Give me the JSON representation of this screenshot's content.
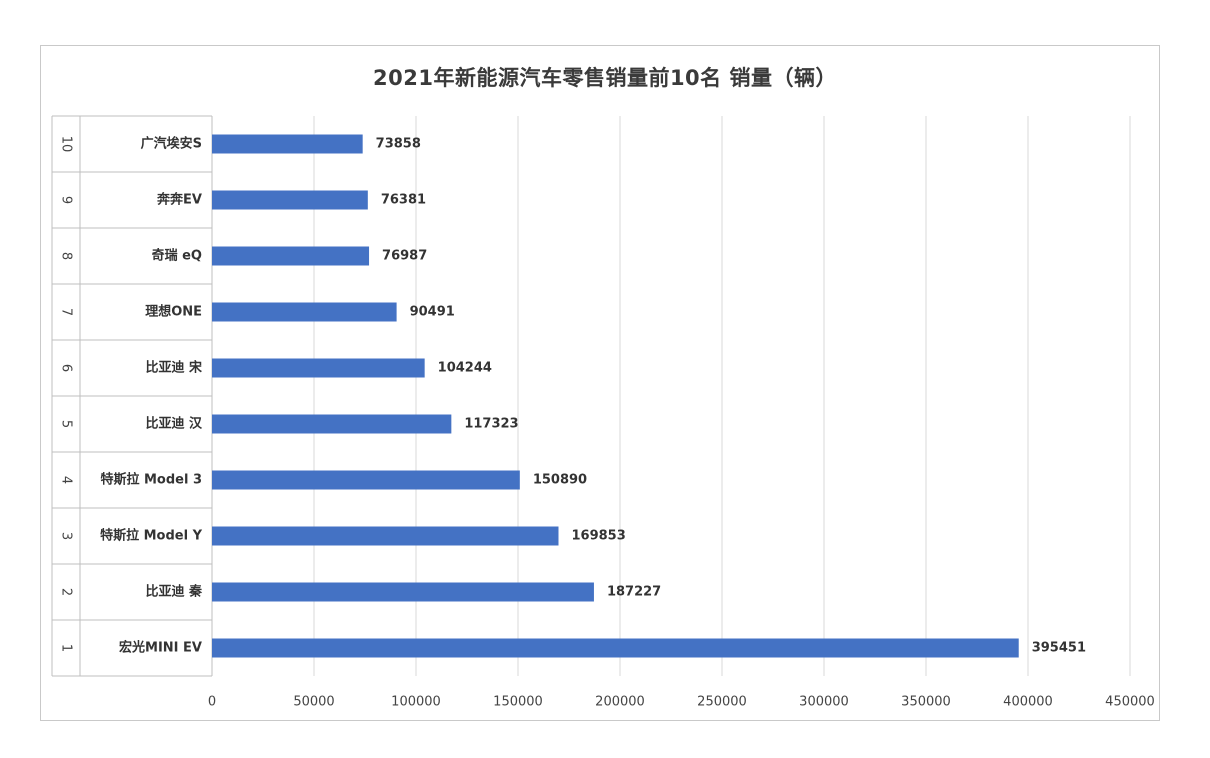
{
  "chart_data": {
    "type": "bar",
    "orientation": "horizontal",
    "title": "2021年新能源汽车零售销量前10名 销量（辆）",
    "xlim": [
      0,
      450000
    ],
    "x_ticks": [
      "0",
      "50000",
      "100000",
      "150000",
      "200000",
      "250000",
      "300000",
      "350000",
      "400000",
      "450000"
    ],
    "grid": true,
    "bar_color": "#4472C4",
    "rows": [
      {
        "rank": "10",
        "label": "广汽埃安S",
        "value": 73858
      },
      {
        "rank": "9",
        "label": "奔奔EV",
        "value": 76381
      },
      {
        "rank": "8",
        "label": "奇瑞 eQ",
        "value": 76987
      },
      {
        "rank": "7",
        "label": "理想ONE",
        "value": 90491
      },
      {
        "rank": "6",
        "label": "比亚迪 宋",
        "value": 104244
      },
      {
        "rank": "5",
        "label": "比亚迪 汉",
        "value": 117323
      },
      {
        "rank": "4",
        "label": "特斯拉 Model 3",
        "value": 150890
      },
      {
        "rank": "3",
        "label": "特斯拉 Model Y",
        "value": 169853
      },
      {
        "rank": "2",
        "label": "比亚迪 秦",
        "value": 187227
      },
      {
        "rank": "1",
        "label": "宏光MINI EV",
        "value": 395451
      }
    ]
  }
}
